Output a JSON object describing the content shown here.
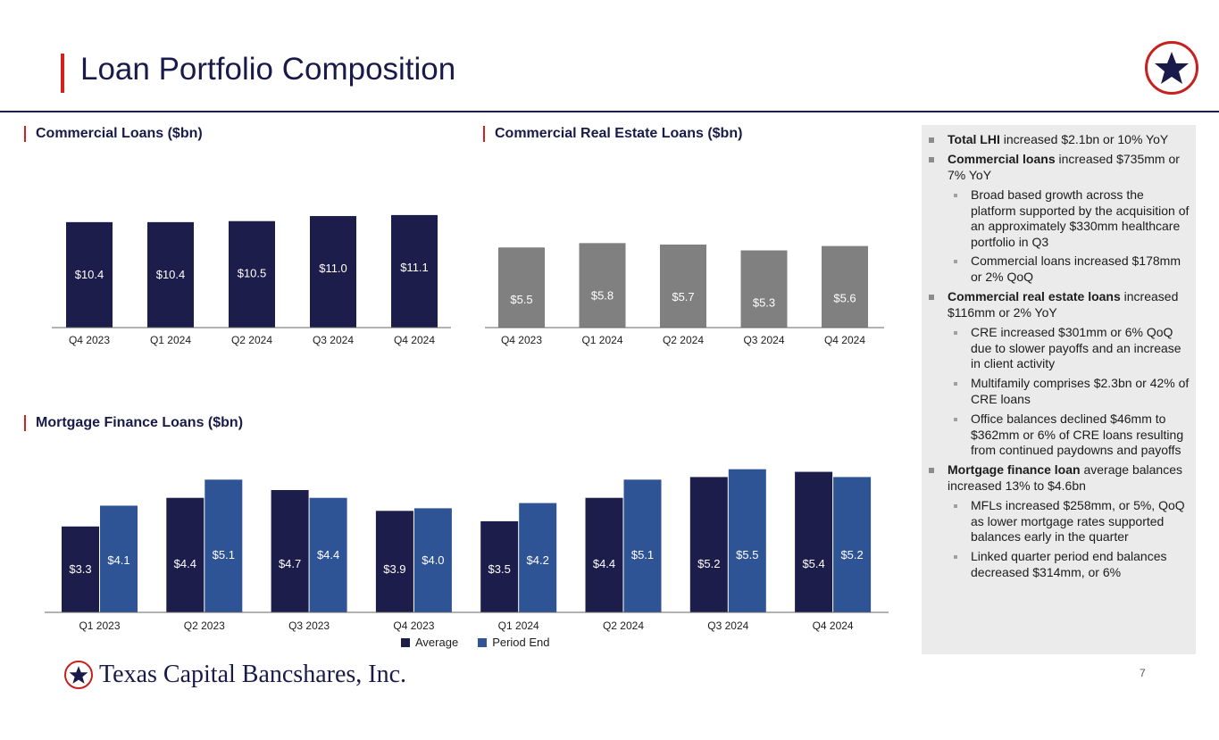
{
  "slide": {
    "title": "Loan Portfolio Composition",
    "page_number": "7",
    "company_name": "Texas Capital Bancshares, Inc."
  },
  "colors": {
    "navy": "#1d1d4b",
    "blue": "#2f5496",
    "grey": "#808080",
    "red": "#d42020"
  },
  "chart_data": [
    {
      "type": "bar",
      "title": "Commercial Loans ($bn)",
      "categories": [
        "Q4 2023",
        "Q1 2024",
        "Q2 2024",
        "Q3 2024",
        "Q4 2024"
      ],
      "values": [
        10.4,
        10.4,
        10.5,
        11.0,
        11.1
      ],
      "labels": [
        "$10.4",
        "$10.4",
        "$10.5",
        "$11.0",
        "$11.1"
      ],
      "color": "#1d1d4b",
      "ylim": [
        0,
        12.5
      ]
    },
    {
      "type": "bar",
      "title": "Commercial Real Estate Loans ($bn)",
      "categories": [
        "Q4 2023",
        "Q1 2024",
        "Q2 2024",
        "Q3 2024",
        "Q4 2024"
      ],
      "values": [
        5.5,
        5.8,
        5.7,
        5.3,
        5.6
      ],
      "labels": [
        "$5.5",
        "$5.8",
        "$5.7",
        "$5.3",
        "$5.6"
      ],
      "color": "#808080",
      "ylim": [
        0,
        8.7
      ]
    },
    {
      "type": "bar",
      "title": "Mortgage Finance Loans ($bn)",
      "categories": [
        "Q1 2023",
        "Q2 2023",
        "Q3 2023",
        "Q4 2023",
        "Q1 2024",
        "Q2 2024",
        "Q3 2024",
        "Q4 2024"
      ],
      "series": [
        {
          "name": "Average",
          "color": "#1d1d4b",
          "values": [
            3.3,
            4.4,
            4.7,
            3.9,
            3.5,
            4.4,
            5.2,
            5.4
          ],
          "labels": [
            "$3.3",
            "$4.4",
            "$4.7",
            "$3.9",
            "$3.5",
            "$4.4",
            "$5.2",
            "$5.4"
          ]
        },
        {
          "name": "Period End",
          "color": "#2f5496",
          "values": [
            4.1,
            5.1,
            4.4,
            4.0,
            4.2,
            5.1,
            5.5,
            5.2
          ],
          "labels": [
            "$4.1",
            "$5.1",
            "$4.4",
            "$4.0",
            "$4.2",
            "$5.1",
            "$5.5",
            "$5.2"
          ]
        }
      ],
      "ylim": [
        0,
        5.9
      ],
      "legend": "bottom-center"
    }
  ],
  "bullets": [
    {
      "bold": "Total LHI",
      "text": " increased $2.1bn or 10% YoY"
    },
    {
      "bold": "Commercial loans",
      "text": " increased $735mm or 7% YoY"
    },
    {
      "bold": "",
      "text": "Broad based growth across the platform supported by the acquisition of an approximately $330mm healthcare portfolio in Q3"
    },
    {
      "bold": "",
      "text": "Commercial loans increased $178mm or 2% QoQ"
    },
    {
      "bold": "Commercial real estate loans",
      "text": " increased $116mm or 2% YoY"
    },
    {
      "bold": "",
      "text": "CRE increased $301mm or 6% QoQ due to slower payoffs and an increase in client activity"
    },
    {
      "bold": "",
      "text": "Multifamily comprises $2.3bn or 42% of CRE loans"
    },
    {
      "bold": "",
      "text": "Office balances declined $46mm to $362mm or 6% of CRE loans resulting from continued paydowns and payoffs"
    },
    {
      "bold": "Mortgage finance loan",
      "text": " average balances increased 13% to $4.6bn"
    },
    {
      "bold": "",
      "text": "MFLs increased $258mm, or 5%, QoQ as lower mortgage rates supported balances early in the quarter"
    },
    {
      "bold": "",
      "text": "Linked quarter period end balances decreased $314mm, or 6%"
    }
  ]
}
